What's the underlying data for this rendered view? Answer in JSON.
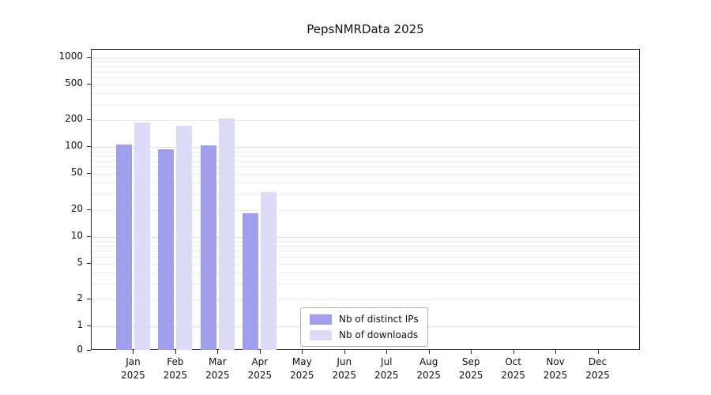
{
  "chart_data": {
    "type": "bar",
    "title": "PepsNMRData 2025",
    "categories": [
      "Jan",
      "Feb",
      "Mar",
      "Apr",
      "May",
      "Jun",
      "Jul",
      "Aug",
      "Sep",
      "Oct",
      "Nov",
      "Dec"
    ],
    "category_year": "2025",
    "series": [
      {
        "name": "Nb of distinct IPs",
        "color": "#9f9fee",
        "values": [
          104,
          93,
          102,
          18,
          0,
          0,
          0,
          0,
          0,
          0,
          0,
          0
        ]
      },
      {
        "name": "Nb of downloads",
        "color": "#dcdcf9",
        "values": [
          185,
          170,
          204,
          31,
          0,
          0,
          0,
          0,
          0,
          0,
          0,
          0
        ]
      }
    ],
    "y_ticks": [
      0,
      1,
      2,
      5,
      10,
      20,
      50,
      100,
      200,
      500,
      1000
    ],
    "y_scale": "symlog",
    "ylim": [
      0,
      1400
    ],
    "grid": "horizontal-log-minor",
    "legend_position": "lower-center"
  }
}
